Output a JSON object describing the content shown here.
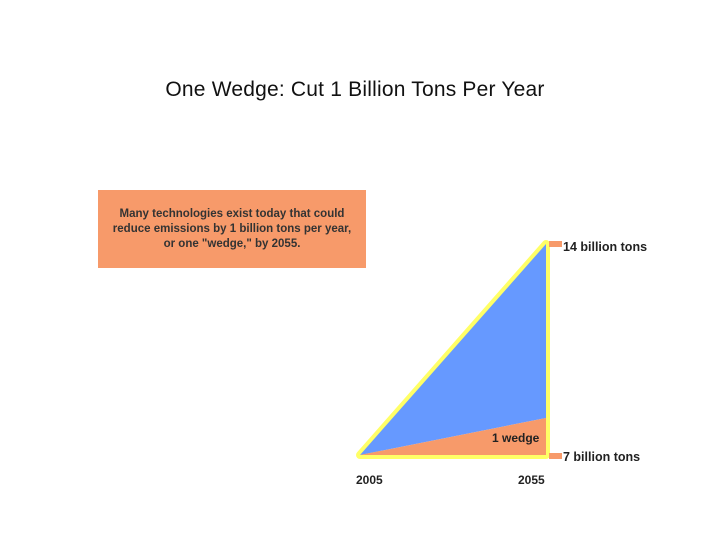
{
  "slide": {
    "title": "One Wedge: Cut 1 Billion Tons Per Year"
  },
  "callout": {
    "text": "Many technologies exist today that could reduce emissions by 1 billion tons per year, or one \"wedge,\" by 2055."
  },
  "diagram": {
    "top_label": "14 billion tons",
    "bottom_label": "7 billion tons",
    "wedge_label": "1 wedge",
    "start_year": "2005",
    "end_year": "2055",
    "colors": {
      "triangle": "#6699ff",
      "wedge": "#f79a6a",
      "outline": "#ffff66",
      "marker": "#f79a6a"
    }
  }
}
